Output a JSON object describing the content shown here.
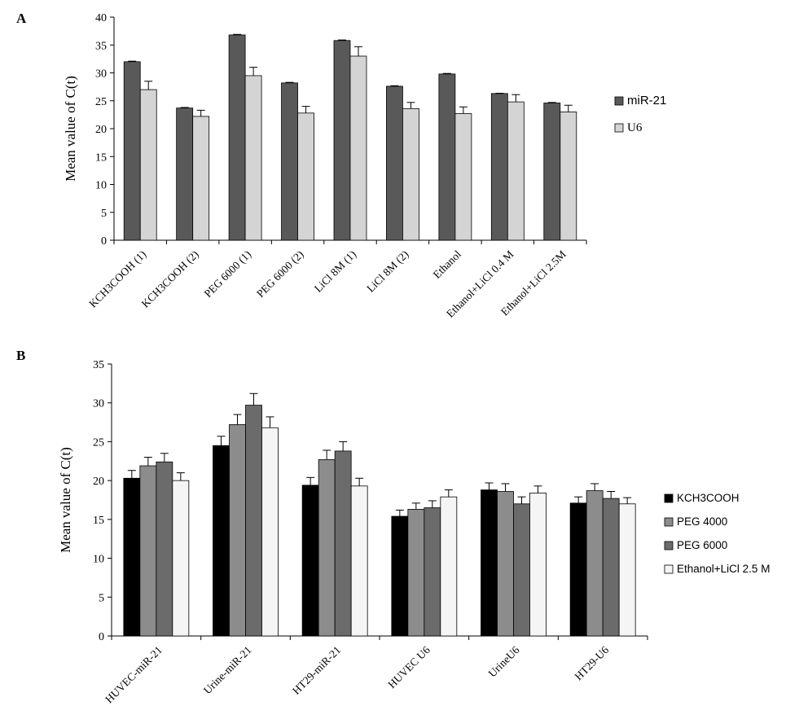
{
  "chart_data": [
    {
      "panel_label": "A",
      "type": "bar",
      "title": "",
      "xlabel": "",
      "ylabel": "Mean value of C(t)",
      "ylim": [
        0,
        40
      ],
      "yticks": [
        0,
        5,
        10,
        15,
        20,
        25,
        30,
        35,
        40
      ],
      "grid": false,
      "legend_position": "right",
      "categories": [
        "KCH3COOH (1)",
        "KCH3COOH (2)",
        "PEG 6000 (1)",
        "PEG 6000 (2)",
        "LiCl  8M (1)",
        "LiCl  8M (2)",
        "Ethanol",
        "Ethanol+LiCl 0.4 M",
        "Ethanol+LiCl 2.5M"
      ],
      "series": [
        {
          "name": "miR-21",
          "color": "#595959",
          "values": [
            32.0,
            23.7,
            36.8,
            28.2,
            35.8,
            27.6,
            29.8,
            26.3,
            24.6
          ],
          "errors": [
            0.1,
            0.1,
            0.1,
            0.1,
            0.1,
            0.1,
            0.1,
            0.05,
            0.1
          ]
        },
        {
          "name": "U6",
          "color": "#d4d4d4",
          "values": [
            27.0,
            22.2,
            29.5,
            22.8,
            33.0,
            23.6,
            22.7,
            24.8,
            23.0
          ],
          "errors": [
            1.5,
            1.1,
            1.5,
            1.2,
            1.7,
            1.1,
            1.2,
            1.3,
            1.2
          ]
        }
      ]
    },
    {
      "panel_label": "B",
      "type": "bar",
      "title": "",
      "xlabel": "",
      "ylabel": "Mean value of C(t)",
      "ylim": [
        0,
        35
      ],
      "yticks": [
        0,
        5,
        10,
        15,
        20,
        25,
        30,
        35
      ],
      "grid": false,
      "legend_position": "right",
      "categories": [
        "HUVEC-miR-21",
        "Urine-miR-21",
        "HT29-miR-21",
        "HUVEC U6",
        "UrineU6",
        "HT29-U6"
      ],
      "series": [
        {
          "name": "KCH3COOH",
          "color": "#000000",
          "values": [
            20.3,
            24.5,
            19.4,
            15.4,
            18.8,
            17.1
          ],
          "errors": [
            1.0,
            1.2,
            1.0,
            0.8,
            0.9,
            0.8
          ]
        },
        {
          "name": "PEG 4000",
          "color": "#8c8c8c",
          "values": [
            21.9,
            27.2,
            22.7,
            16.3,
            18.6,
            18.7
          ],
          "errors": [
            1.1,
            1.3,
            1.2,
            0.8,
            1.0,
            0.9
          ]
        },
        {
          "name": "PEG 6000",
          "color": "#6b6b6b",
          "values": [
            22.4,
            29.7,
            23.8,
            16.5,
            17.0,
            17.7
          ],
          "errors": [
            1.1,
            1.5,
            1.2,
            0.9,
            0.9,
            0.9
          ]
        },
        {
          "name": "Ethanol+LiCl 2.5 M",
          "color": "#f5f5f5",
          "values": [
            20.0,
            26.8,
            19.3,
            17.9,
            18.4,
            17.0
          ],
          "errors": [
            1.0,
            1.4,
            1.0,
            0.9,
            0.9,
            0.8
          ]
        }
      ]
    }
  ]
}
